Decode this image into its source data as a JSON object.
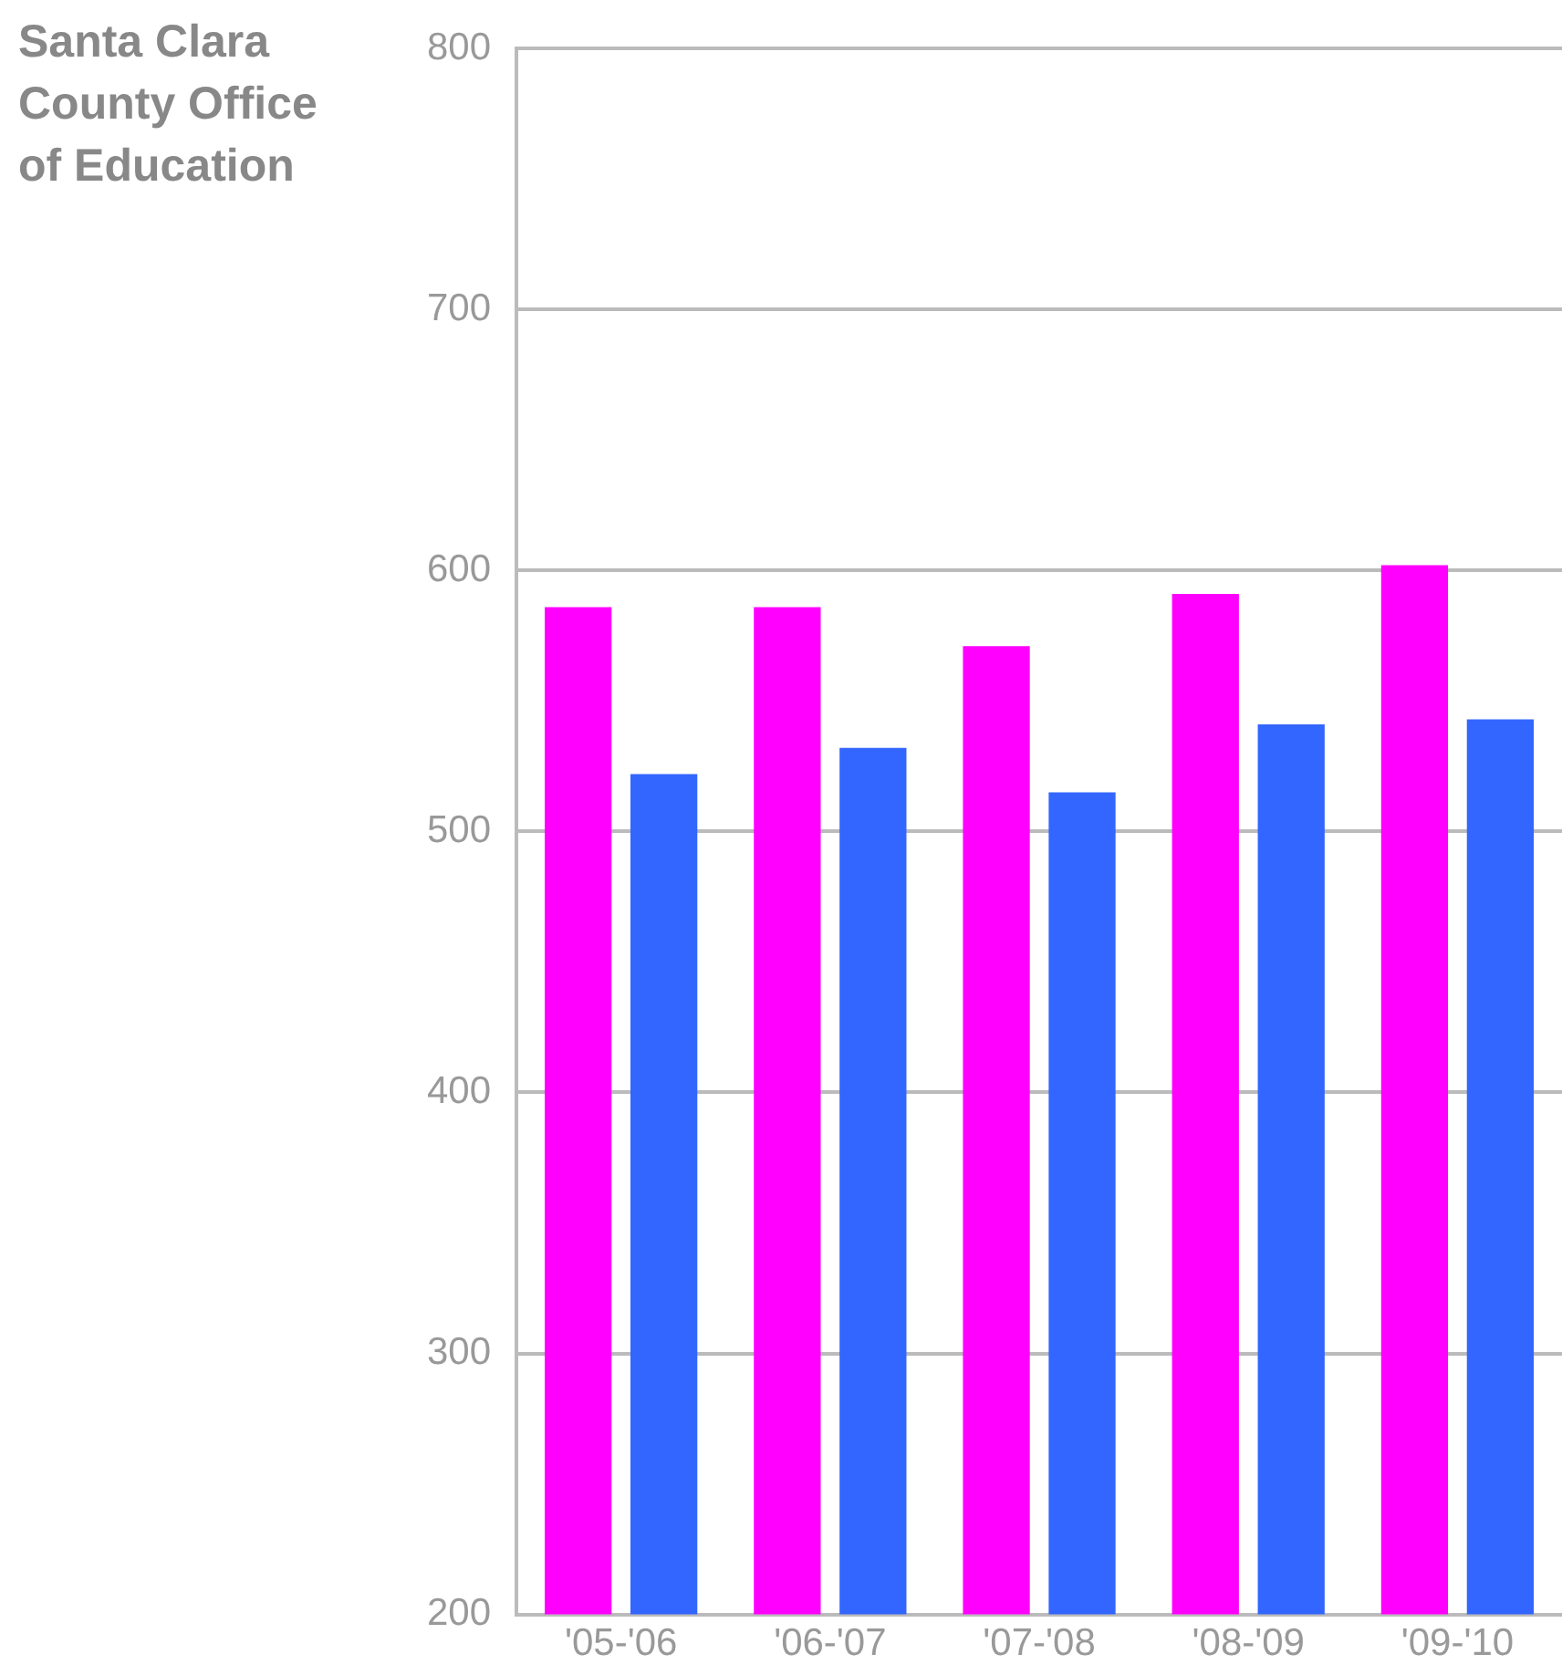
{
  "chart_data": {
    "type": "bar",
    "title": "Santa Clara County Office of Education",
    "categories": [
      "'05-'06",
      "'06-'07",
      "'07-'08",
      "'08-'09",
      "'09-'10"
    ],
    "series": [
      {
        "color": "#ff00ff",
        "values": [
          586,
          586,
          571,
          591,
          602
        ]
      },
      {
        "color": "#3366ff",
        "values": [
          522,
          532,
          515,
          541,
          543
        ]
      }
    ],
    "ylim": [
      200,
      800
    ],
    "yticks": [
      200,
      300,
      400,
      500,
      600,
      700,
      800
    ],
    "grid": "y",
    "legend": false
  }
}
